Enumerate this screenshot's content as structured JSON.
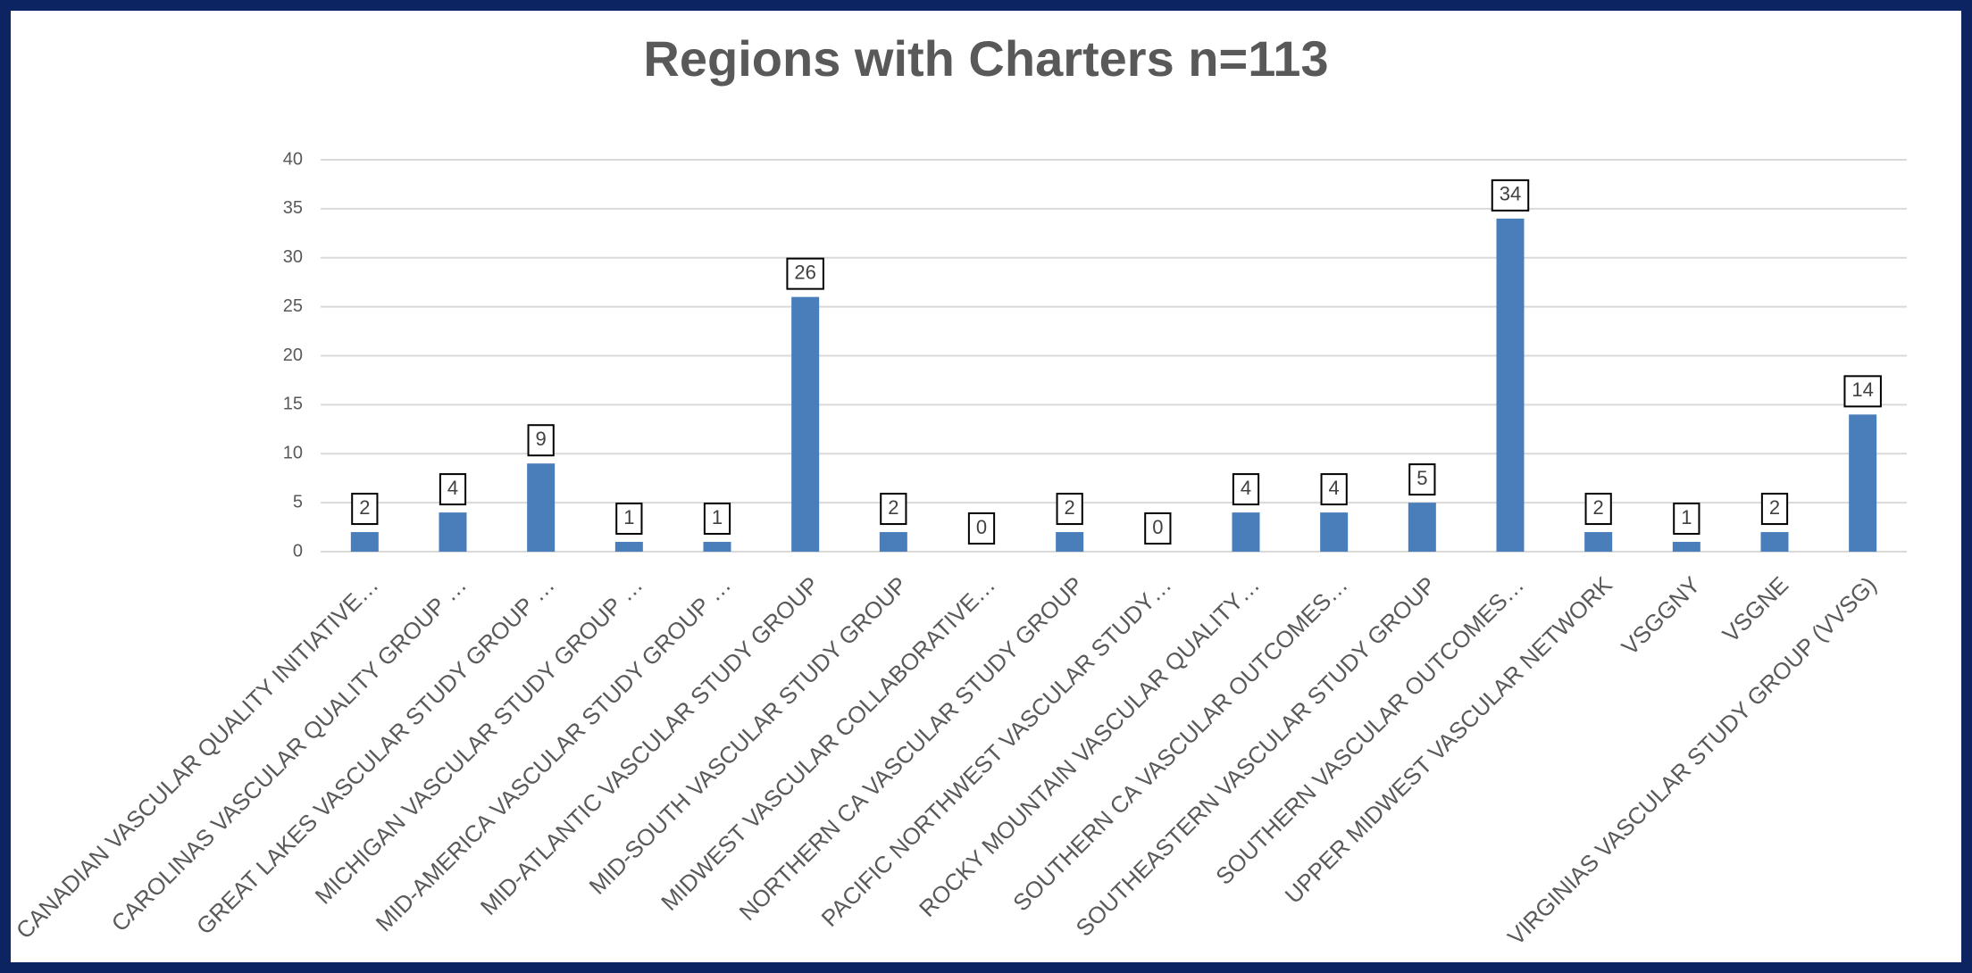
{
  "chart_data": {
    "type": "bar",
    "title": "Regions with Charters n=113",
    "categories": [
      "CANADIAN VASCULAR QUALITY INITIATIVE…",
      "CAROLINAS VASCULAR QUALITY GROUP …",
      "GREAT LAKES VASCULAR STUDY GROUP …",
      "MICHIGAN VASCULAR STUDY GROUP …",
      "MID-AMERICA VASCULAR STUDY GROUP …",
      "MID-ATLANTIC VASCULAR STUDY GROUP",
      "MID-SOUTH VASCULAR STUDY GROUP",
      "MIDWEST VASCULAR COLLABORATIVE…",
      "NORTHERN CA VASCULAR STUDY GROUP",
      "PACIFIC NORTHWEST VASCULAR STUDY…",
      "ROCKY MOUNTAIN VASCULAR QUALITY…",
      "SOUTHERN CA VASCULAR OUTCOMES…",
      "SOUTHEASTERN VASCULAR STUDY GROUP",
      "SOUTHERN VASCULAR OUTCOMES…",
      "UPPER MIDWEST VASCULAR NETWORK",
      "VSGGNY",
      "VSGNE",
      "VIRGINIAS VASCULAR STUDY GROUP (VVSG)"
    ],
    "values": [
      2,
      4,
      9,
      1,
      1,
      26,
      2,
      0,
      2,
      0,
      4,
      4,
      5,
      34,
      2,
      1,
      2,
      14
    ],
    "color": "#4a7ebb",
    "ylim": [
      0,
      40
    ],
    "yticks": [
      0,
      5,
      10,
      15,
      20,
      25,
      30,
      35,
      40
    ],
    "grid": true
  }
}
